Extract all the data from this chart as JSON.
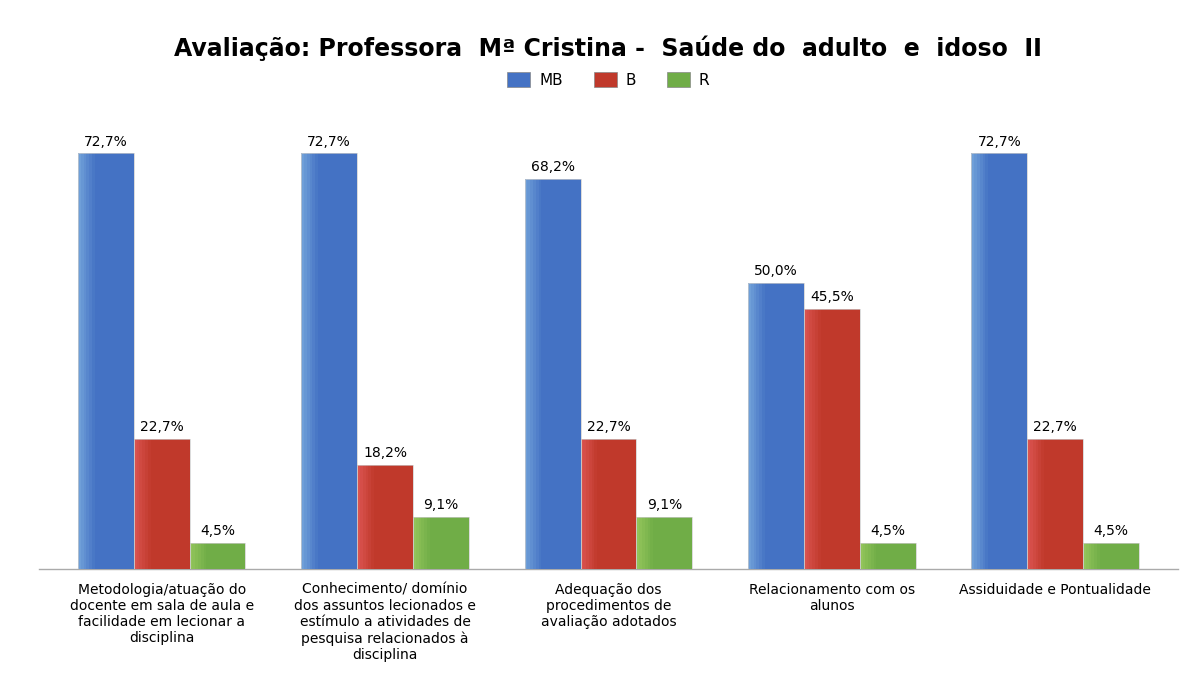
{
  "title": "Avaliação: Professora  Mª Cristina -  Saúde do  adulto  e  idoso  II",
  "categories": [
    "Metodologia/atuação do\ndocente em sala de aula e\nfacilidade em lecionar a\ndisciplina",
    "Conhecimento/ domínio\ndos assuntos lecionados e\nestímulo a atividades de\npesquisa relacionados à\ndisciplina",
    "Adequação dos\nprocedimentos de\navaliação adotados",
    "Relacionamento com os\nalunos",
    "Assiduidade e Pontualidade"
  ],
  "series": {
    "MB": [
      72.7,
      72.7,
      68.2,
      50.0,
      72.7
    ],
    "B": [
      22.7,
      18.2,
      22.7,
      45.5,
      22.7
    ],
    "R": [
      4.5,
      9.1,
      9.1,
      4.5,
      4.5
    ]
  },
  "value_labels": {
    "MB": [
      "72,7%",
      "72,7%",
      "68,2%",
      "50,0%",
      "72,7%"
    ],
    "B": [
      "22,7%",
      "18,2%",
      "22,7%",
      "45,5%",
      "22,7%"
    ],
    "R": [
      "4,5%",
      "9,1%",
      "9,1%",
      "4,5%",
      "4,5%"
    ]
  },
  "colors": {
    "MB": "#4472C4",
    "MB_light": "#6F9FD8",
    "B": "#C0392B",
    "B_light": "#D9534F",
    "R": "#70AD47",
    "R_light": "#92C45A"
  },
  "legend_labels": [
    "MB",
    "B",
    "R"
  ],
  "ylim": [
    0,
    80
  ],
  "bar_width": 0.25,
  "background_color": "#FFFFFF",
  "title_fontsize": 17,
  "label_fontsize": 10,
  "tick_fontsize": 10,
  "legend_fontsize": 11
}
